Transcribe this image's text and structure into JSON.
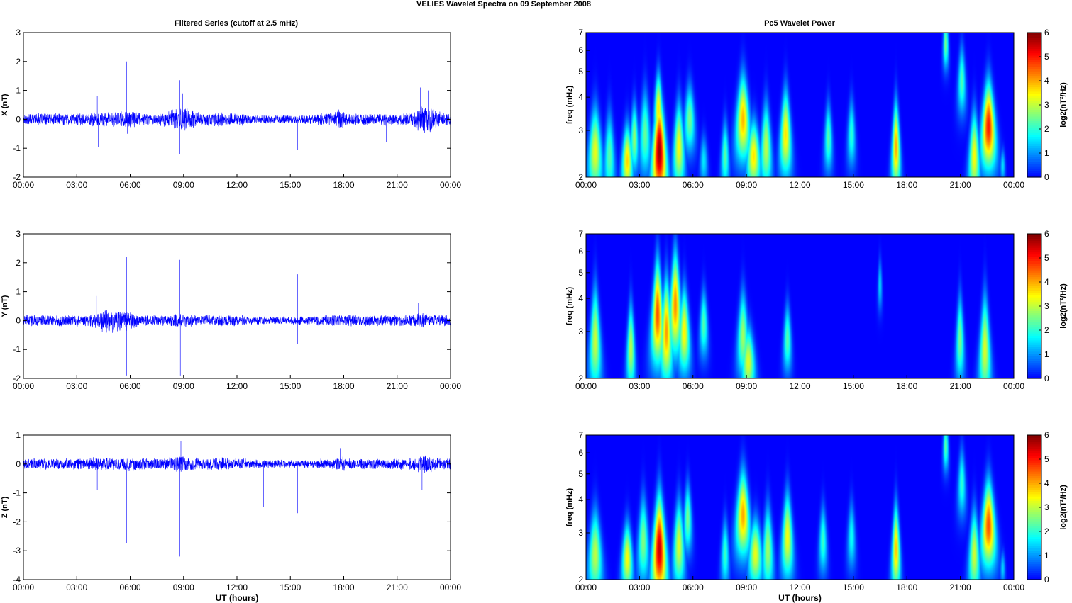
{
  "figure": {
    "title": "VELIES Wavelet Spectra on 09 September 2008",
    "left_title": "Filtered Series (cutoff at 2.5 mHz)",
    "right_title": "Pc5 Wavelet Power",
    "xlabel": "UT (hours)",
    "time_ticks": [
      "00:00",
      "03:00",
      "06:00",
      "09:00",
      "12:00",
      "15:00",
      "18:00",
      "21:00",
      "00:00"
    ]
  },
  "chart_data": [
    {
      "type": "line",
      "name": "X",
      "ylabel": "X (nT)",
      "ylim": [
        -2,
        3
      ],
      "yticks": [
        -2,
        -1,
        0,
        1,
        2,
        3
      ],
      "x_range_hours": [
        0,
        24
      ],
      "noise_amplitude": 0.13,
      "bursts": [
        [
          4.3,
          0.5,
          1.3
        ],
        [
          5.8,
          0.7,
          1.5
        ],
        [
          8.9,
          0.8,
          2.0
        ],
        [
          11.0,
          0.5,
          1.2
        ],
        [
          17.8,
          0.3,
          1.8
        ],
        [
          22.6,
          0.6,
          2.6
        ]
      ],
      "spikes": [
        [
          4.15,
          0.8
        ],
        [
          4.2,
          -0.95
        ],
        [
          5.8,
          2.0
        ],
        [
          5.85,
          -0.5
        ],
        [
          8.8,
          1.35
        ],
        [
          8.8,
          -1.2
        ],
        [
          8.95,
          0.9
        ],
        [
          15.4,
          -1.05
        ],
        [
          20.4,
          -0.8
        ],
        [
          22.3,
          1.1
        ],
        [
          22.5,
          -1.65
        ],
        [
          22.9,
          -1.4
        ],
        [
          22.75,
          1.0
        ]
      ]
    },
    {
      "type": "line",
      "name": "Y",
      "ylabel": "Y (nT)",
      "ylim": [
        -2,
        3
      ],
      "yticks": [
        -2,
        -1,
        0,
        1,
        2,
        3
      ],
      "x_range_hours": [
        0,
        24
      ],
      "noise_amplitude": 0.12,
      "bursts": [
        [
          4.8,
          0.8,
          2.2
        ],
        [
          5.9,
          0.5,
          1.6
        ],
        [
          8.8,
          0.5,
          1.4
        ],
        [
          22.3,
          0.4,
          1.5
        ]
      ],
      "spikes": [
        [
          4.1,
          0.85
        ],
        [
          4.25,
          -0.65
        ],
        [
          5.8,
          2.2
        ],
        [
          5.8,
          -1.9
        ],
        [
          8.8,
          2.1
        ],
        [
          8.82,
          -1.9
        ],
        [
          15.4,
          1.6
        ],
        [
          15.4,
          -0.8
        ],
        [
          22.2,
          0.6
        ]
      ]
    },
    {
      "type": "line",
      "name": "Z",
      "ylabel": "Z (nT)",
      "ylim": [
        -4,
        1
      ],
      "yticks": [
        -4,
        -3,
        -2,
        -1,
        0,
        1
      ],
      "x_range_hours": [
        0,
        24
      ],
      "noise_amplitude": 0.12,
      "bursts": [
        [
          4.2,
          0.5,
          1.3
        ],
        [
          5.9,
          0.6,
          1.3
        ],
        [
          8.9,
          0.8,
          1.5
        ],
        [
          11.2,
          0.5,
          1.2
        ],
        [
          17.9,
          0.3,
          1.5
        ],
        [
          22.6,
          0.6,
          1.8
        ]
      ],
      "spikes": [
        [
          4.15,
          -0.9
        ],
        [
          5.8,
          -2.75
        ],
        [
          8.8,
          -3.2
        ],
        [
          8.85,
          0.8
        ],
        [
          13.5,
          -1.5
        ],
        [
          15.4,
          -1.7
        ],
        [
          17.8,
          0.55
        ],
        [
          22.4,
          -0.9
        ]
      ]
    },
    {
      "type": "heatmap",
      "name": "Pc5 power X",
      "ylabel": "freq (mHz)",
      "yscale": "log",
      "ylim": [
        2,
        7
      ],
      "yticks": [
        2,
        3,
        4,
        5,
        6,
        7
      ],
      "colorbar_label": "log2(nT²/Hz)",
      "clim": [
        0,
        6
      ],
      "colorbar_ticks": [
        0,
        1,
        2,
        3,
        4,
        5,
        6
      ],
      "blobs": [
        [
          0.5,
          2.5,
          0.25,
          0.25,
          3.3
        ],
        [
          1.3,
          2.4,
          0.2,
          0.25,
          2.3
        ],
        [
          2.3,
          2.3,
          0.2,
          0.2,
          3.7
        ],
        [
          2.7,
          2.8,
          0.15,
          0.2,
          2.7
        ],
        [
          3.3,
          2.9,
          0.2,
          0.25,
          2.4
        ],
        [
          4.1,
          2.5,
          0.25,
          0.3,
          5.8
        ],
        [
          4.05,
          3.6,
          0.15,
          0.2,
          3.6
        ],
        [
          5.2,
          2.6,
          0.2,
          0.25,
          3.4
        ],
        [
          5.8,
          3.3,
          0.2,
          0.2,
          2.5
        ],
        [
          6.6,
          2.3,
          0.15,
          0.15,
          1.6
        ],
        [
          7.8,
          2.4,
          0.15,
          0.2,
          2.3
        ],
        [
          8.8,
          3.3,
          0.25,
          0.25,
          3.9
        ],
        [
          9.4,
          2.4,
          0.25,
          0.2,
          3.6
        ],
        [
          10.1,
          2.6,
          0.2,
          0.25,
          3.0
        ],
        [
          11.2,
          2.9,
          0.2,
          0.25,
          3.6
        ],
        [
          13.6,
          2.8,
          0.15,
          0.2,
          2.3
        ],
        [
          14.9,
          2.9,
          0.15,
          0.2,
          2.0
        ],
        [
          17.4,
          2.6,
          0.15,
          0.25,
          4.0
        ],
        [
          20.2,
          6.4,
          0.1,
          0.15,
          2.6
        ],
        [
          21.1,
          4.6,
          0.15,
          0.2,
          2.2
        ],
        [
          21.8,
          2.4,
          0.2,
          0.25,
          3.4
        ],
        [
          22.6,
          3.1,
          0.25,
          0.25,
          5.0
        ],
        [
          23.4,
          2.2,
          0.1,
          0.1,
          1.5
        ]
      ]
    },
    {
      "type": "heatmap",
      "name": "Pc5 power Y",
      "ylabel": "freq (mHz)",
      "yscale": "log",
      "ylim": [
        2,
        7
      ],
      "yticks": [
        2,
        3,
        4,
        5,
        6,
        7
      ],
      "colorbar_label": "log2(nT²/Hz)",
      "clim": [
        0,
        6
      ],
      "colorbar_ticks": [
        0,
        1,
        2,
        3,
        4,
        5,
        6
      ],
      "blobs": [
        [
          0.5,
          2.8,
          0.2,
          0.3,
          3.1
        ],
        [
          2.5,
          2.6,
          0.15,
          0.25,
          3.0
        ],
        [
          4.0,
          3.5,
          0.2,
          0.3,
          4.6
        ],
        [
          4.5,
          3.0,
          0.2,
          0.3,
          4.1
        ],
        [
          5.0,
          3.8,
          0.2,
          0.3,
          4.2
        ],
        [
          5.5,
          3.0,
          0.2,
          0.25,
          3.5
        ],
        [
          6.6,
          3.2,
          0.15,
          0.2,
          2.3
        ],
        [
          8.8,
          2.9,
          0.2,
          0.25,
          2.8
        ],
        [
          9.1,
          2.3,
          0.25,
          0.2,
          3.2
        ],
        [
          11.3,
          2.8,
          0.15,
          0.2,
          2.3
        ],
        [
          16.5,
          4.5,
          0.08,
          0.15,
          1.5
        ],
        [
          21.0,
          2.8,
          0.15,
          0.25,
          2.5
        ],
        [
          22.4,
          2.6,
          0.2,
          0.3,
          3.2
        ]
      ]
    },
    {
      "type": "heatmap",
      "name": "Pc5 power Z",
      "ylabel": "freq (mHz)",
      "yscale": "log",
      "ylim": [
        2,
        7
      ],
      "yticks": [
        2,
        3,
        4,
        5,
        6,
        7
      ],
      "colorbar_label": "log2(nT²/Hz)",
      "clim": [
        0,
        6
      ],
      "colorbar_ticks": [
        0,
        1,
        2,
        3,
        4,
        5,
        6
      ],
      "blobs": [
        [
          0.5,
          2.5,
          0.25,
          0.25,
          3.0
        ],
        [
          2.3,
          2.4,
          0.2,
          0.2,
          3.4
        ],
        [
          3.2,
          2.8,
          0.2,
          0.25,
          2.6
        ],
        [
          4.1,
          2.6,
          0.25,
          0.3,
          5.5
        ],
        [
          5.2,
          2.7,
          0.2,
          0.25,
          3.2
        ],
        [
          5.7,
          3.4,
          0.15,
          0.2,
          2.5
        ],
        [
          7.8,
          2.5,
          0.15,
          0.2,
          2.1
        ],
        [
          8.8,
          3.5,
          0.25,
          0.25,
          4.0
        ],
        [
          9.5,
          2.5,
          0.25,
          0.2,
          3.3
        ],
        [
          10.2,
          2.6,
          0.2,
          0.25,
          2.8
        ],
        [
          11.3,
          2.9,
          0.2,
          0.25,
          3.4
        ],
        [
          13.3,
          2.8,
          0.15,
          0.2,
          2.1
        ],
        [
          14.9,
          2.9,
          0.15,
          0.2,
          1.8
        ],
        [
          17.4,
          2.6,
          0.15,
          0.25,
          3.8
        ],
        [
          20.2,
          6.4,
          0.1,
          0.15,
          2.4
        ],
        [
          21.1,
          4.6,
          0.15,
          0.2,
          2.0
        ],
        [
          21.8,
          2.5,
          0.2,
          0.25,
          3.1
        ],
        [
          22.6,
          3.2,
          0.25,
          0.25,
          4.6
        ],
        [
          23.4,
          2.2,
          0.1,
          0.1,
          1.4
        ]
      ]
    }
  ]
}
